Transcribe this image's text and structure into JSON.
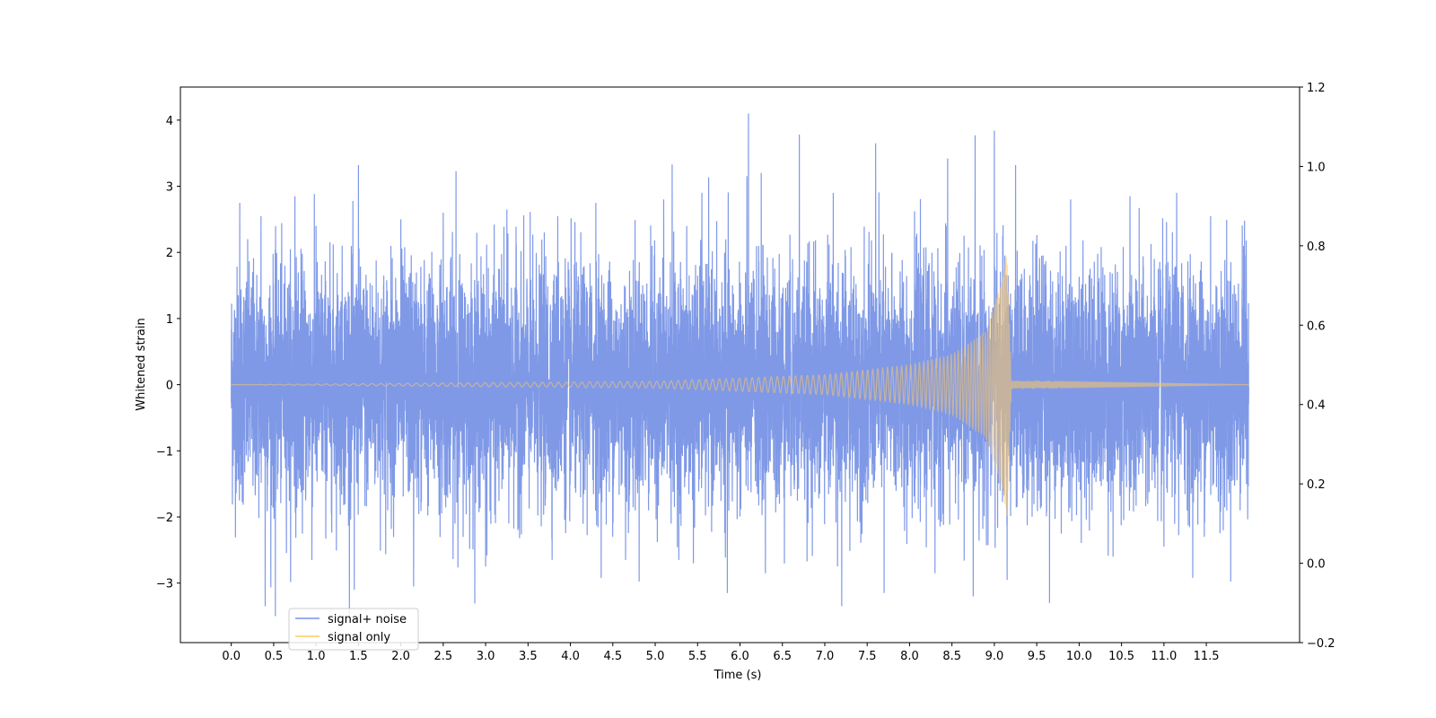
{
  "chart_data": {
    "type": "line",
    "title": "",
    "xlabel": "Time (s)",
    "ylabel": "Whitened strain",
    "ylabel_right": "",
    "xlim": [
      -0.6,
      12.6
    ],
    "ylim": [
      -3.9,
      4.5
    ],
    "ylim_right": [
      -0.2,
      1.2
    ],
    "x_ticks": [
      0.0,
      0.5,
      1.0,
      1.5,
      2.0,
      2.5,
      3.0,
      3.5,
      4.0,
      4.5,
      5.0,
      5.5,
      6.0,
      6.5,
      7.0,
      7.5,
      8.0,
      8.5,
      9.0,
      9.5,
      10.0,
      10.5,
      11.0,
      11.5
    ],
    "x_tick_labels": [
      "0.0",
      "0.5",
      "1.0",
      "1.5",
      "2.0",
      "2.5",
      "3.0",
      "3.5",
      "4.0",
      "4.5",
      "5.0",
      "5.5",
      "6.0",
      "6.5",
      "7.0",
      "7.5",
      "8.0",
      "8.5",
      "9.0",
      "9.5",
      "10.0",
      "10.5",
      "11.0",
      "11.5"
    ],
    "y_ticks": [
      -3,
      -2,
      -1,
      0,
      1,
      2,
      3,
      4
    ],
    "y_tick_labels": [
      "−3",
      "−2",
      "−1",
      "0",
      "1",
      "2",
      "3",
      "4"
    ],
    "y_right_ticks": [
      -0.2,
      0.0,
      0.2,
      0.4,
      0.6,
      0.8,
      1.0,
      1.2
    ],
    "y_right_tick_labels": [
      "−0.2",
      "0.0",
      "0.2",
      "0.4",
      "0.6",
      "0.8",
      "1.0",
      "1.2"
    ],
    "grid": false,
    "legend": "lower-left",
    "series": [
      {
        "name": "signal+ noise",
        "color": "#7894e6",
        "x_range": [
          0.0,
          12.0
        ],
        "typical_band": [
          -1.6,
          1.6
        ],
        "peaks": [
          {
            "x": 0.1,
            "y": 2.75
          },
          {
            "x": 0.35,
            "y": 2.55
          },
          {
            "x": 0.75,
            "y": 2.85
          },
          {
            "x": 1.0,
            "y": 2.4
          },
          {
            "x": 1.5,
            "y": 3.32
          },
          {
            "x": 2.0,
            "y": 2.5
          },
          {
            "x": 2.5,
            "y": 2.6
          },
          {
            "x": 2.65,
            "y": 3.23
          },
          {
            "x": 3.25,
            "y": 2.65
          },
          {
            "x": 3.85,
            "y": 2.55
          },
          {
            "x": 4.3,
            "y": 2.75
          },
          {
            "x": 5.1,
            "y": 2.8
          },
          {
            "x": 5.2,
            "y": 3.33
          },
          {
            "x": 5.55,
            "y": 2.9
          },
          {
            "x": 6.1,
            "y": 4.1
          },
          {
            "x": 6.25,
            "y": 3.2
          },
          {
            "x": 6.7,
            "y": 3.78
          },
          {
            "x": 7.1,
            "y": 2.9
          },
          {
            "x": 7.6,
            "y": 3.65
          },
          {
            "x": 8.45,
            "y": 3.42
          },
          {
            "x": 9.0,
            "y": 3.84
          },
          {
            "x": 9.25,
            "y": 3.32
          },
          {
            "x": 9.9,
            "y": 2.8
          },
          {
            "x": 10.6,
            "y": 2.85
          },
          {
            "x": 11.15,
            "y": 2.9
          },
          {
            "x": 11.55,
            "y": 2.55
          },
          {
            "x": 11.95,
            "y": 2.48
          }
        ],
        "troughs": [
          {
            "x": 0.4,
            "y": -3.35
          },
          {
            "x": 0.52,
            "y": -3.5
          },
          {
            "x": 0.95,
            "y": -2.65
          },
          {
            "x": 1.45,
            "y": -3.1
          },
          {
            "x": 2.15,
            "y": -3.05
          },
          {
            "x": 3.0,
            "y": -2.75
          },
          {
            "x": 4.65,
            "y": -2.65
          },
          {
            "x": 5.45,
            "y": -2.7
          },
          {
            "x": 5.85,
            "y": -3.15
          },
          {
            "x": 6.3,
            "y": -2.85
          },
          {
            "x": 7.2,
            "y": -3.35
          },
          {
            "x": 7.7,
            "y": -3.15
          },
          {
            "x": 8.3,
            "y": -2.85
          },
          {
            "x": 8.75,
            "y": -3.2
          },
          {
            "x": 9.15,
            "y": -2.95
          },
          {
            "x": 9.65,
            "y": -3.3
          },
          {
            "x": 10.4,
            "y": -2.6
          },
          {
            "x": 11.0,
            "y": -2.45
          },
          {
            "x": 11.7,
            "y": -2.2
          }
        ]
      },
      {
        "name": "signal only",
        "color": "#ffc864",
        "x_range": [
          0.0,
          12.0
        ],
        "merger_time": 9.15,
        "peak_amplitude": 2.0,
        "envelope": [
          {
            "x": 0.0,
            "y": 0.0
          },
          {
            "x": 5.0,
            "y": 0.05
          },
          {
            "x": 6.0,
            "y": 0.1
          },
          {
            "x": 7.0,
            "y": 0.15
          },
          {
            "x": 8.0,
            "y": 0.3
          },
          {
            "x": 8.5,
            "y": 0.45
          },
          {
            "x": 8.9,
            "y": 0.8
          },
          {
            "x": 9.1,
            "y": 1.6
          },
          {
            "x": 9.15,
            "y": 2.0
          },
          {
            "x": 9.2,
            "y": 0.05
          },
          {
            "x": 12.0,
            "y": 0.0
          }
        ]
      }
    ]
  }
}
